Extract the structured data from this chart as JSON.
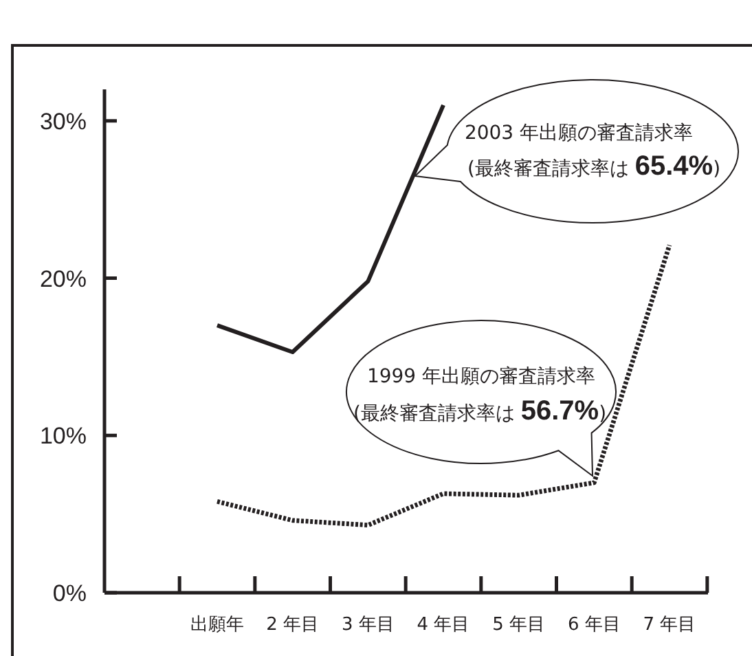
{
  "chart_data": {
    "type": "line",
    "categories": [
      "出願年",
      "2 年目",
      "3 年目",
      "4 年目",
      "5 年目",
      "6 年目",
      "7 年目"
    ],
    "series": [
      {
        "name": "2003 年出願の審査請求率",
        "color": "#231f20",
        "line_style": "solid",
        "values": [
          17,
          15.3,
          19.8,
          31,
          null,
          null,
          null
        ]
      },
      {
        "name": "1999 年出願の審査請求率",
        "color": "#231f20",
        "line_style": "dotted",
        "values": [
          5.8,
          4.6,
          4.3,
          6.3,
          6.2,
          7.0,
          22.1
        ]
      }
    ],
    "annotations": [
      "(最終審査請求率は 65.4%)",
      "(最終審査請求率は 56.7%)"
    ],
    "ylim": [
      0,
      32
    ],
    "yticks": [
      {
        "value": 0,
        "label": "0%"
      },
      {
        "value": 10,
        "label": "10%"
      },
      {
        "value": 20,
        "label": "20%"
      },
      {
        "value": 30,
        "label": "30%"
      }
    ],
    "marker": "none"
  }
}
